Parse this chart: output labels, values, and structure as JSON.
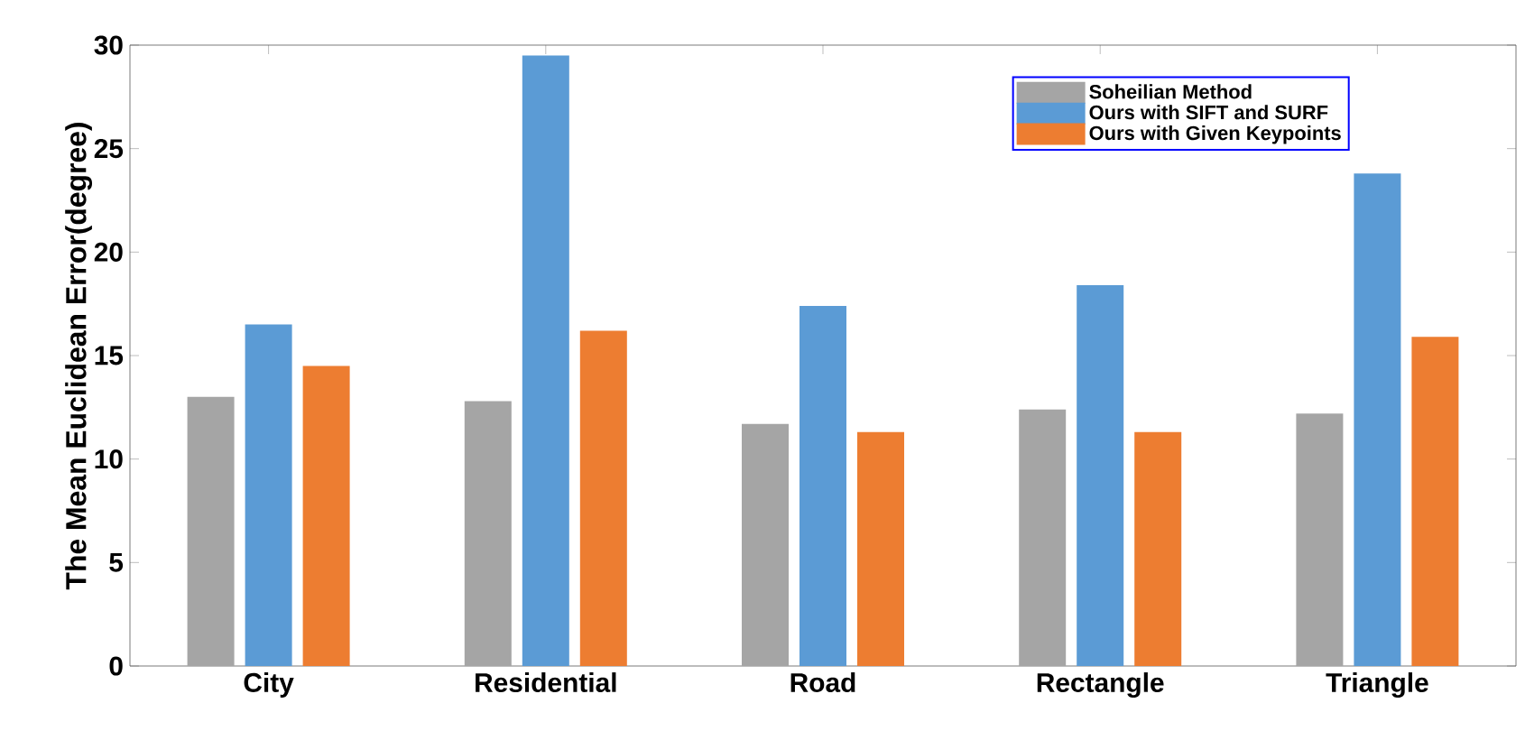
{
  "chart_data": {
    "type": "bar",
    "ylabel": "The  Mean  Euclidean  Error(degree)",
    "categories": [
      "City",
      "Residential",
      "Road",
      "Rectangle",
      "Triangle"
    ],
    "series": [
      {
        "name": "Soheilian Method",
        "color": "#a5a5a5",
        "values": [
          13.0,
          12.8,
          11.7,
          12.4,
          12.2
        ]
      },
      {
        "name": "Ours with SIFT and SURF",
        "color": "#5b9bd5",
        "values": [
          16.5,
          29.5,
          17.4,
          18.4,
          23.8
        ]
      },
      {
        "name": "Ours with Given Keypoints",
        "color": "#ed7d31",
        "values": [
          14.5,
          16.2,
          11.3,
          11.3,
          15.9
        ]
      }
    ],
    "ylim": [
      0,
      30
    ],
    "yticks": [
      0,
      5,
      10,
      15,
      20,
      25,
      30
    ],
    "grid": false,
    "legend": "top right"
  }
}
